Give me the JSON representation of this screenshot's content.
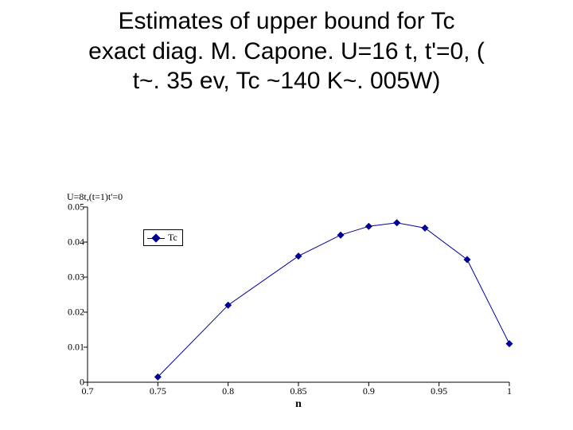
{
  "title_lines": [
    "Estimates of upper bound for  Tc",
    "exact diag. M. Capone. U=16 t, t'=0, (",
    "t~. 35 ev, Tc ~140 K~. 005W)"
  ],
  "chart": {
    "type": "line",
    "plot_title": "U=8t,(t=1)t'=0",
    "x_label": "n",
    "xlim": [
      0.7,
      1.0
    ],
    "ylim": [
      0.0,
      0.05
    ],
    "xticks": [
      0.7,
      0.75,
      0.8,
      0.85,
      0.9,
      0.95,
      1.0
    ],
    "xtick_labels": [
      "0.7",
      "0.75",
      "0.8",
      "0.85",
      "0.9",
      "0.95",
      "1"
    ],
    "yticks": [
      0.0,
      0.01,
      0.02,
      0.03,
      0.04,
      0.05
    ],
    "ytick_labels": [
      "0",
      "0.01",
      "0.02",
      "0.03",
      "0.04",
      "0.05"
    ],
    "series": {
      "label": "Tc",
      "color": "#000099",
      "marker": "diamond",
      "marker_size": 9,
      "line_width": 1,
      "x": [
        0.75,
        0.8,
        0.85,
        0.88,
        0.9,
        0.92,
        0.94,
        0.97,
        1.0
      ],
      "y": [
        0.0015,
        0.022,
        0.036,
        0.042,
        0.0445,
        0.0455,
        0.044,
        0.035,
        0.011
      ]
    },
    "axis_color": "#000000",
    "background_color": "#ffffff",
    "tick_length": 5,
    "tick_font_size": 12,
    "title_font_size": 12,
    "x_label_font_size": 14
  }
}
